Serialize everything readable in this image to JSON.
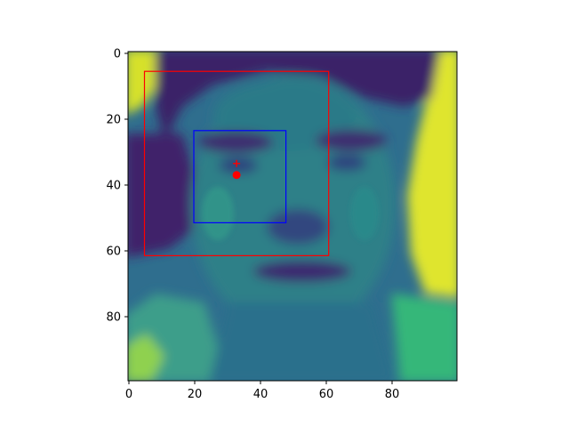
{
  "image_plot": {
    "colormap": "viridis",
    "colors": {
      "dark": "#45247a",
      "mid_dark": "#3b528b",
      "mid": "#21908d",
      "light": "#5dc863",
      "bright": "#e1e52a",
      "box_outer": "#ff0000",
      "box_inner": "#0000ff",
      "marker": "#ff0000"
    },
    "axes": {
      "x_ticks": [
        0,
        20,
        40,
        60,
        80
      ],
      "y_ticks": [
        0,
        20,
        40,
        60,
        80
      ],
      "xlim": [
        0,
        100
      ],
      "ylim": [
        100,
        0
      ]
    },
    "annotations": {
      "outer_box": {
        "x0": 5,
        "y0": 6,
        "x1": 61,
        "y1": 62
      },
      "inner_box": {
        "x0": 20,
        "y0": 24,
        "x1": 48,
        "y1": 52
      },
      "plus_marker": {
        "x": 33,
        "y": 34
      },
      "dot_marker": {
        "x": 33,
        "y": 37.5
      }
    }
  }
}
